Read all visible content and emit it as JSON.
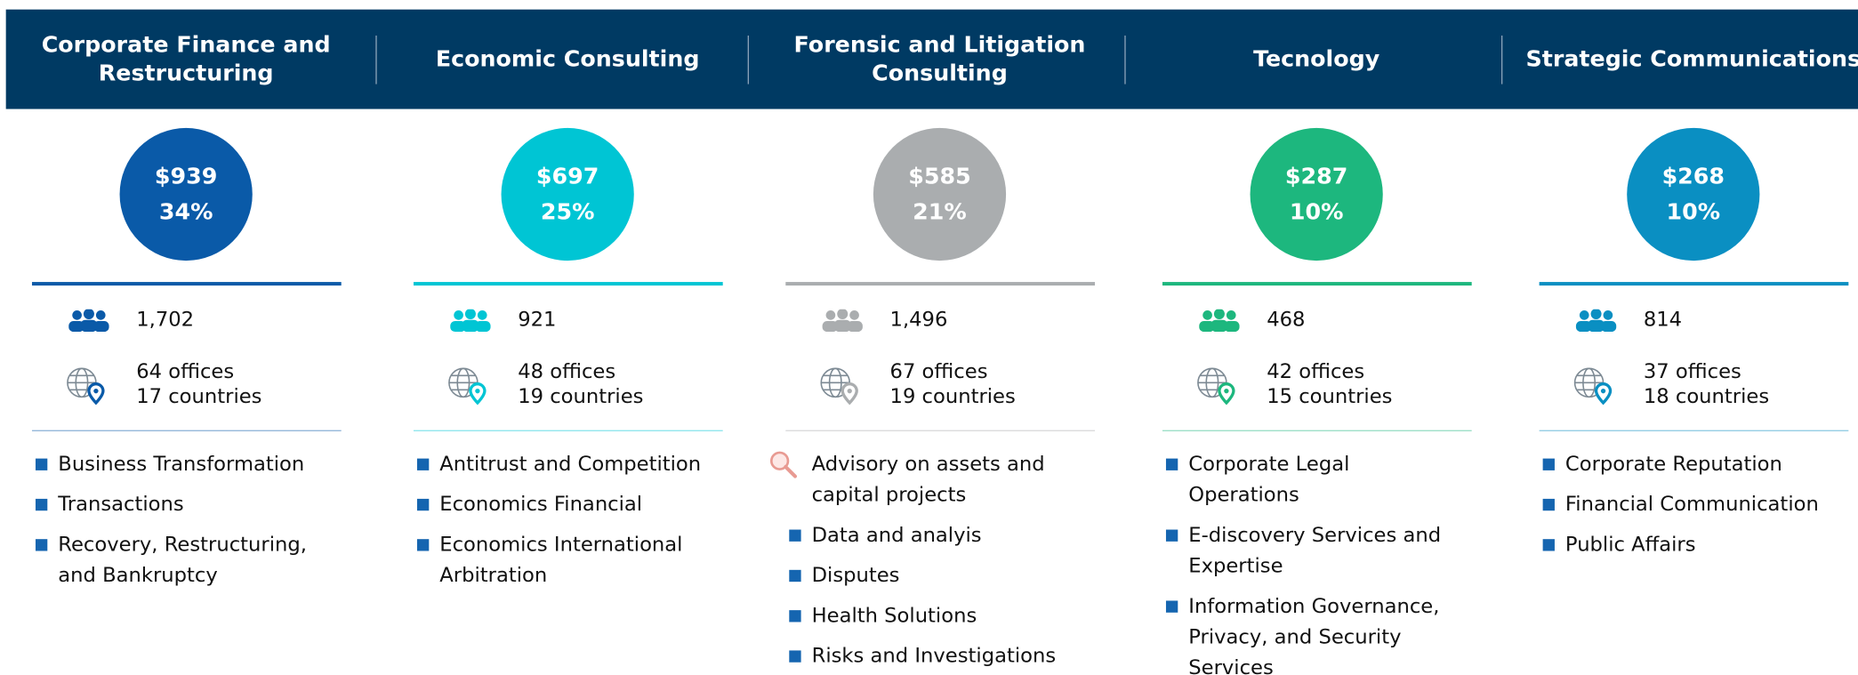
{
  "columns": [
    {
      "title": "Corporate Finance and Restructuring",
      "amount": "$939",
      "share": "34%",
      "employees": "1,702",
      "offices": "64 offices",
      "countries": "17 countries",
      "color": "#0a5aa8",
      "services": [
        "Business Transformation",
        "Transactions",
        "Recovery, Restructuring, and Bankruptcy"
      ]
    },
    {
      "title": "Economic Consulting",
      "amount": "$697",
      "share": "25%",
      "employees": "921",
      "offices": "48 offices",
      "countries": "19 countries",
      "color": "#00c5d4",
      "services": [
        "Antitrust and Competition",
        "Economics Financial",
        "Economics International Arbitration"
      ]
    },
    {
      "title": "Forensic and Litigation Consulting",
      "amount": "$585",
      "share": "21%",
      "employees": "1,496",
      "offices": "67 offices",
      "countries": "19 countries",
      "color": "#aaadaf",
      "services": [
        "Advisory on assets and capital projects",
        "Data and analyis",
        "Disputes",
        "Health Solutions",
        "Risks and Investigations"
      ]
    },
    {
      "title": "Tecnology",
      "amount": "$287",
      "share": "10%",
      "employees": "468",
      "offices": "42 offices",
      "countries": "15 countries",
      "color": "#1db77e",
      "services": [
        "Corporate Legal Operations",
        "E-discovery Services and Expertise",
        "Information Governance, Privacy, and Security Services"
      ]
    },
    {
      "title": "Strategic Communications",
      "amount": "$268",
      "share": "10%",
      "employees": "814",
      "offices": "37 offices",
      "countries": "18 countries",
      "color": "#0a8fc2",
      "services": [
        "Corporate Reputation",
        "Financial Communication",
        "Public Affairs"
      ]
    }
  ]
}
